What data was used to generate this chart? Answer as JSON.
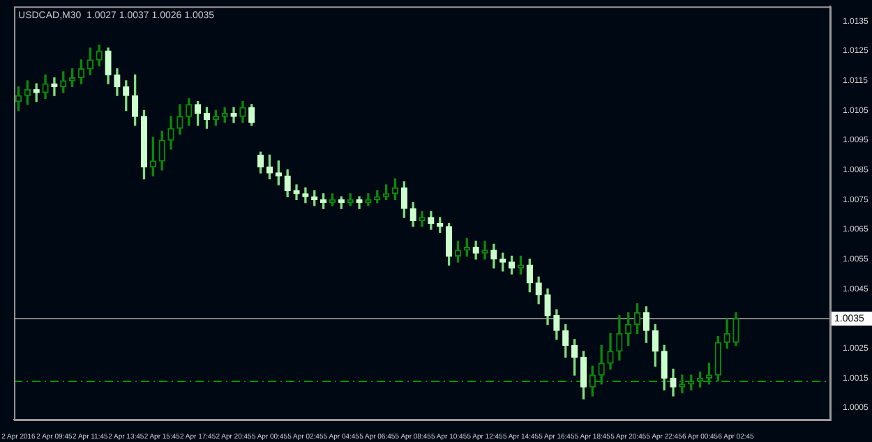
{
  "chart_data": {
    "type": "candlestick",
    "title": "USDCAD,M30  1.0027 1.0037 1.0026 1.0035",
    "categories": [
      "2 Apr 2016",
      null,
      null,
      null,
      "2 Apr 09:45",
      null,
      null,
      null,
      "2 Apr 11:45",
      null,
      null,
      null,
      "2 Apr 13:45",
      null,
      null,
      null,
      "2 Apr 15:45",
      null,
      null,
      null,
      "2 Apr 17:45",
      null,
      null,
      null,
      "2 Apr 20:45",
      null,
      null,
      null,
      "5 Apr 00:45",
      null,
      null,
      null,
      "5 Apr 02:45",
      null,
      null,
      null,
      "5 Apr 04:45",
      null,
      null,
      null,
      "5 Apr 06:45",
      null,
      null,
      null,
      "5 Apr 08:45",
      null,
      null,
      null,
      "5 Apr 10:45",
      null,
      null,
      null,
      "5 Apr 12:45",
      null,
      null,
      null,
      "5 Apr 14:45",
      null,
      null,
      null,
      "5 Apr 16:45",
      null,
      null,
      null,
      "5 Apr 18:45",
      null,
      null,
      null,
      "5 Apr 20:45",
      null,
      null,
      null,
      "5 Apr 22:45",
      null,
      null,
      null,
      "6 Apr 00:45",
      null,
      null,
      null,
      "6 Apr 02:45",
      null,
      null,
      null,
      null,
      null,
      null,
      null,
      null,
      null,
      null
    ],
    "ohlc": [
      [
        1.0108,
        1.0113,
        1.0105,
        1.011
      ],
      [
        1.011,
        1.0115,
        1.0107,
        1.0112
      ],
      [
        1.0112,
        1.0114,
        1.0108,
        1.0111
      ],
      [
        1.0111,
        1.0117,
        1.0109,
        1.0114
      ],
      [
        1.0114,
        1.0116,
        1.011,
        1.0113
      ],
      [
        1.0113,
        1.0118,
        1.0111,
        1.0115
      ],
      [
        1.0115,
        1.0119,
        1.0113,
        1.0116
      ],
      [
        1.0116,
        1.0122,
        1.0114,
        1.0119
      ],
      [
        1.0119,
        1.0126,
        1.0117,
        1.0122
      ],
      [
        1.0122,
        1.0127,
        1.012,
        1.0125
      ],
      [
        1.0125,
        1.0126,
        1.0114,
        1.0117
      ],
      [
        1.0117,
        1.0119,
        1.011,
        1.0113
      ],
      [
        1.0113,
        1.0115,
        1.0105,
        1.011
      ],
      [
        1.011,
        1.0117,
        1.01,
        1.0103
      ],
      [
        1.0103,
        1.0105,
        1.0082,
        1.0086
      ],
      [
        1.0086,
        1.0096,
        1.0083,
        1.0088
      ],
      [
        1.0088,
        1.0098,
        1.0085,
        1.0095
      ],
      [
        1.0095,
        1.0103,
        1.0092,
        1.0099
      ],
      [
        1.0099,
        1.0107,
        1.0097,
        1.0103
      ],
      [
        1.0103,
        1.0109,
        1.01,
        1.0107
      ],
      [
        1.0107,
        1.0108,
        1.01,
        1.0104
      ],
      [
        1.0104,
        1.0106,
        1.0099,
        1.0102
      ],
      [
        1.0102,
        1.0105,
        1.01,
        1.0103
      ],
      [
        1.0103,
        1.0106,
        1.0101,
        1.0104
      ],
      [
        1.0104,
        1.0106,
        1.0101,
        1.0103
      ],
      [
        1.0103,
        1.0108,
        1.0101,
        1.0106
      ],
      [
        1.0106,
        1.0107,
        1.01,
        1.0101
      ],
      [
        1.009,
        1.0091,
        1.0084,
        1.0086
      ],
      [
        1.0086,
        1.009,
        1.0082,
        1.0084
      ],
      [
        1.0084,
        1.0088,
        1.008,
        1.0083
      ],
      [
        1.0083,
        1.0085,
        1.0076,
        1.0078
      ],
      [
        1.0078,
        1.008,
        1.0075,
        1.0077
      ],
      [
        1.0077,
        1.0079,
        1.0074,
        1.0076
      ],
      [
        1.0076,
        1.0078,
        1.0073,
        1.0075
      ],
      [
        1.0075,
        1.0077,
        1.0072,
        1.0074
      ],
      [
        1.0074,
        1.0077,
        1.0073,
        1.0075
      ],
      [
        1.0075,
        1.0076,
        1.0072,
        1.0074
      ],
      [
        1.0074,
        1.0077,
        1.0073,
        1.0075
      ],
      [
        1.0075,
        1.0076,
        1.0072,
        1.0074
      ],
      [
        1.0074,
        1.0077,
        1.0073,
        1.0075
      ],
      [
        1.0075,
        1.0078,
        1.0074,
        1.0076
      ],
      [
        1.0076,
        1.008,
        1.0075,
        1.0077
      ],
      [
        1.0077,
        1.0082,
        1.0075,
        1.0079
      ],
      [
        1.0079,
        1.0081,
        1.0069,
        1.0072
      ],
      [
        1.0072,
        1.0074,
        1.0066,
        1.0068
      ],
      [
        1.0068,
        1.0071,
        1.0066,
        1.0069
      ],
      [
        1.0069,
        1.0071,
        1.0065,
        1.0067
      ],
      [
        1.0067,
        1.0069,
        1.0064,
        1.0066
      ],
      [
        1.0066,
        1.0067,
        1.0053,
        1.0056
      ],
      [
        1.0056,
        1.0061,
        1.0054,
        1.0058
      ],
      [
        1.0058,
        1.0062,
        1.0056,
        1.0059
      ],
      [
        1.0059,
        1.0061,
        1.0055,
        1.0057
      ],
      [
        1.0057,
        1.0061,
        1.0055,
        1.0058
      ],
      [
        1.0058,
        1.006,
        1.0052,
        1.0055
      ],
      [
        1.0055,
        1.0057,
        1.0051,
        1.0054
      ],
      [
        1.0054,
        1.0056,
        1.005,
        1.0052
      ],
      [
        1.0052,
        1.0056,
        1.005,
        1.0053
      ],
      [
        1.0053,
        1.0055,
        1.0044,
        1.0047
      ],
      [
        1.0047,
        1.0049,
        1.004,
        1.0043
      ],
      [
        1.0043,
        1.0045,
        1.0033,
        1.0036
      ],
      [
        1.0036,
        1.0038,
        1.0028,
        1.0031
      ],
      [
        1.0031,
        1.0033,
        1.0022,
        1.0026
      ],
      [
        1.0026,
        1.0028,
        1.0016,
        1.0022
      ],
      [
        1.0022,
        1.0024,
        1.0008,
        1.0012
      ],
      [
        1.0012,
        1.0019,
        1.0009,
        1.0016
      ],
      [
        1.0016,
        1.0026,
        1.0013,
        1.002
      ],
      [
        1.002,
        1.003,
        1.0018,
        1.0024
      ],
      [
        1.0024,
        1.0036,
        1.0021,
        1.003
      ],
      [
        1.003,
        1.0037,
        1.0026,
        1.0033
      ],
      [
        1.0033,
        1.004,
        1.003,
        1.0037
      ],
      [
        1.0037,
        1.0039,
        1.0027,
        1.0031
      ],
      [
        1.0031,
        1.0033,
        1.0019,
        1.0024
      ],
      [
        1.0024,
        1.0026,
        1.0011,
        1.0015
      ],
      [
        1.0015,
        1.0018,
        1.0009,
        1.0012
      ],
      [
        1.0012,
        1.0016,
        1.001,
        1.0013
      ],
      [
        1.0013,
        1.0016,
        1.0011,
        1.0014
      ],
      [
        1.0014,
        1.0017,
        1.0012,
        1.0015
      ],
      [
        1.0015,
        1.002,
        1.0013,
        1.0016
      ],
      [
        1.0016,
        1.0029,
        1.0014,
        1.0027
      ],
      [
        1.0027,
        1.0035,
        1.0025,
        1.003
      ],
      [
        1.0027,
        1.0037,
        1.0026,
        1.0035
      ],
      null,
      null,
      null,
      null,
      null,
      null,
      null,
      null,
      null,
      null
    ],
    "ylim": [
      1.0001,
      1.014
    ],
    "yticks": [
      1.0005,
      1.0015,
      1.0025,
      1.0045,
      1.0055,
      1.0065,
      1.0075,
      1.0085,
      1.0095,
      1.0105,
      1.0115,
      1.0125,
      1.0135
    ],
    "ref_lines": [
      {
        "axis": "y",
        "value": 1.0035,
        "label": "1.0035",
        "color": "#808080"
      },
      {
        "axis": "y",
        "value": 1.0014,
        "color": "#009900",
        "line_style": "dashed"
      }
    ],
    "grid": false,
    "legend": false
  }
}
